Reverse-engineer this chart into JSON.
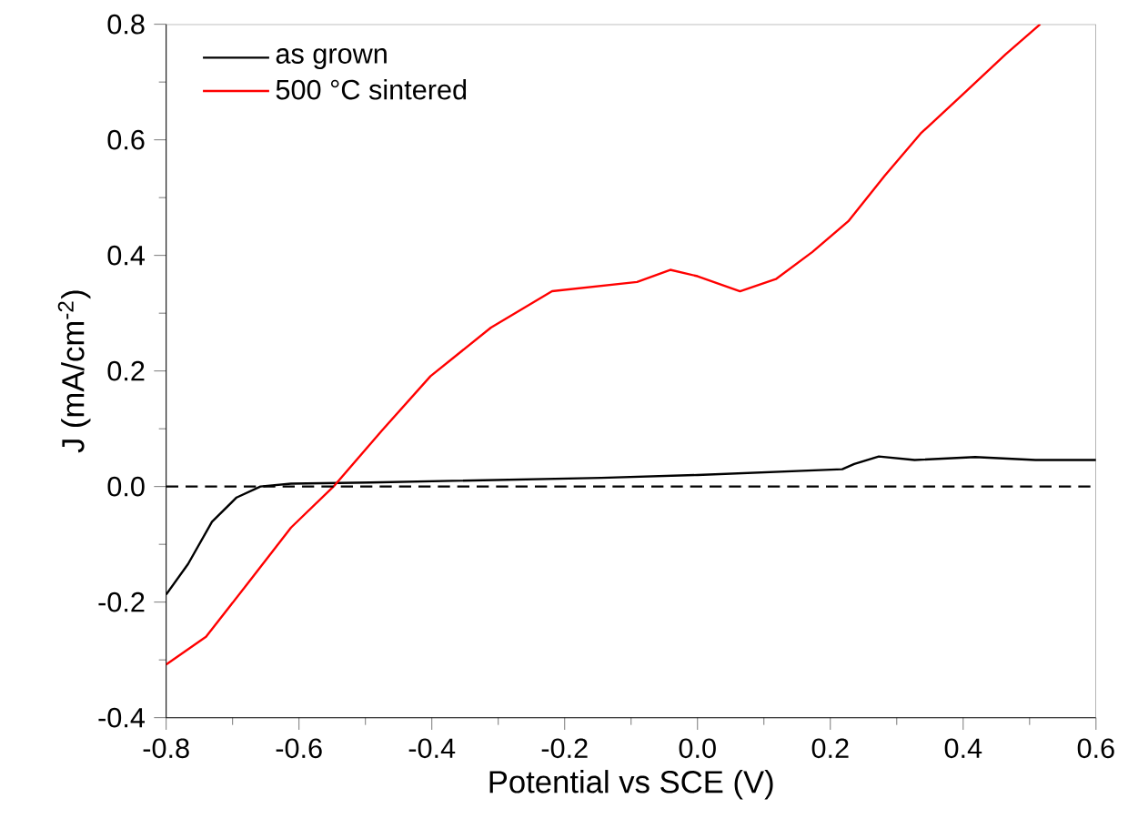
{
  "chart_data": {
    "type": "line",
    "xlabel": "Potential vs SCE (V)",
    "ylabel": "J (mA/cm$^{-2}$)",
    "xlim": [
      -0.8,
      0.6
    ],
    "ylim": [
      -0.4,
      0.8
    ],
    "xticks": [
      -0.8,
      -0.6,
      -0.4,
      -0.2,
      {
        "value": 0,
        "label": "0.0"
      },
      0.2,
      0.4,
      0.6
    ],
    "yticks": [
      -0.4,
      -0.2,
      {
        "value": 0,
        "label": "0.0"
      },
      0.2,
      0.4,
      0.6,
      0.8
    ],
    "grid": false,
    "legend": "top left",
    "marker": "none",
    "line_style": "solid",
    "ref_lines": [
      {
        "axis": "y",
        "value": 0,
        "color": "#000000",
        "line_style": "dashed"
      }
    ],
    "series": [
      {
        "name": "as grown",
        "color": "#000000",
        "x": [
          -0.8,
          -0.767,
          -0.731,
          -0.694,
          -0.658,
          -0.612,
          -0.493,
          -0.145,
          0,
          0.218,
          0.236,
          0.273,
          0.327,
          0.418,
          0.509,
          0.6
        ],
        "values": [
          -0.187,
          -0.134,
          -0.061,
          -0.019,
          0,
          0.005,
          0.007,
          0.015,
          0.02,
          0.03,
          0.039,
          0.052,
          0.046,
          0.051,
          0.046,
          0.046
        ]
      },
      {
        "name": "500 °C sintered",
        "color": "#ff0000",
        "x": [
          -0.8,
          -0.74,
          -0.676,
          -0.612,
          -0.548,
          -0.475,
          -0.402,
          -0.311,
          -0.219,
          -0.091,
          -0.041,
          0,
          0.064,
          0.118,
          0.173,
          0.227,
          0.282,
          0.336,
          0.4,
          0.464,
          0.516
        ],
        "values": [
          -0.308,
          -0.26,
          -0.166,
          -0.071,
          0,
          0.097,
          0.191,
          0.275,
          0.338,
          0.354,
          0.375,
          0.364,
          0.338,
          0.359,
          0.406,
          0.459,
          0.538,
          0.611,
          0.679,
          0.748,
          0.8
        ]
      }
    ]
  }
}
